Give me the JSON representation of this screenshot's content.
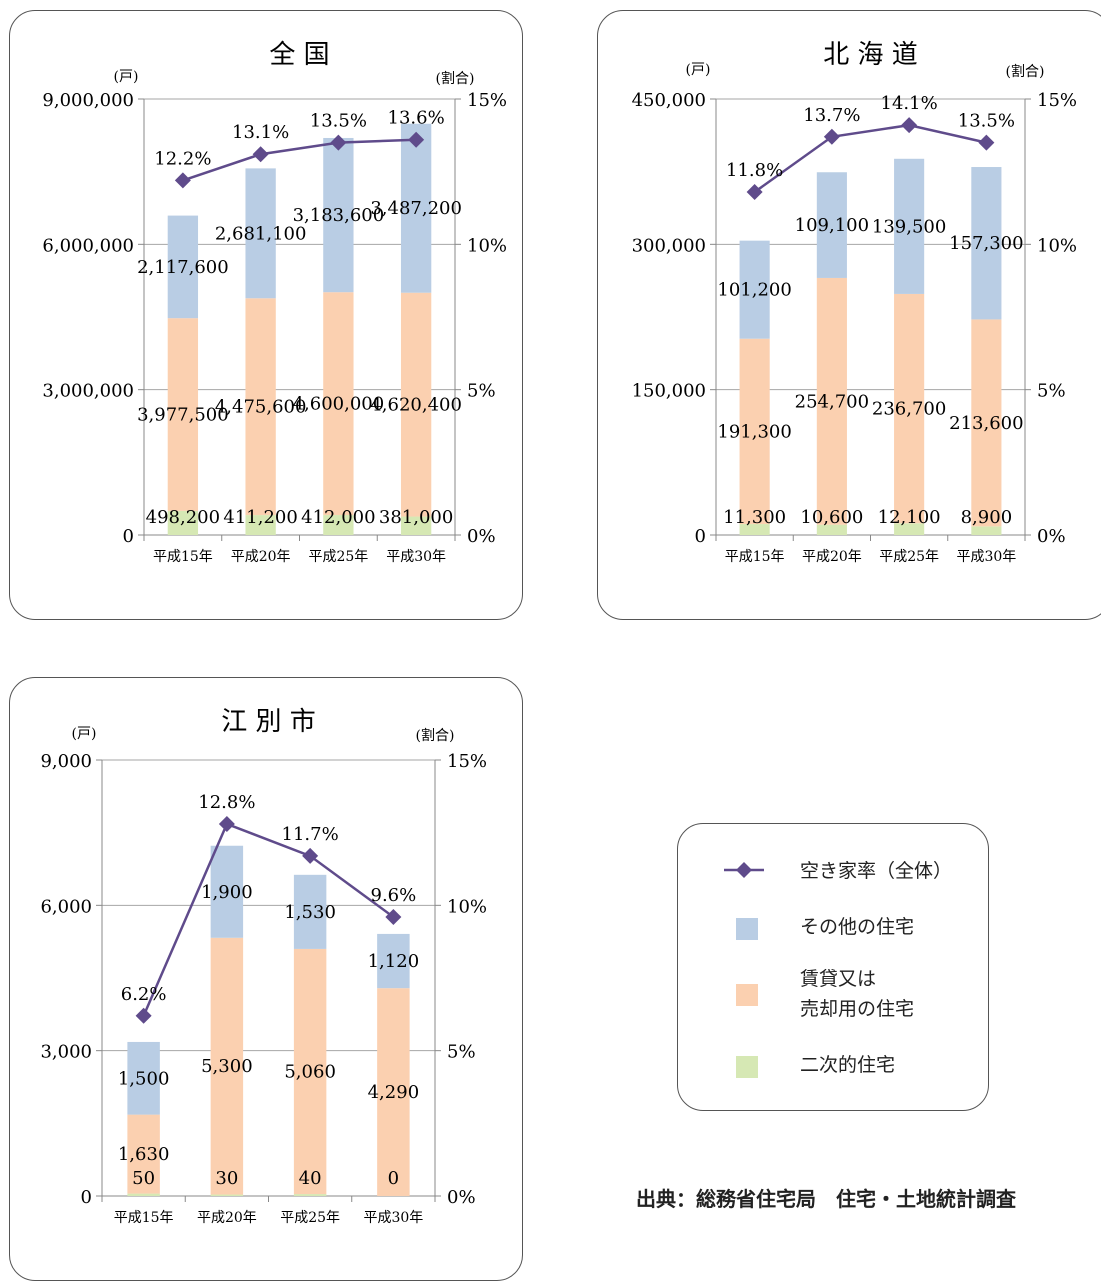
{
  "colors": {
    "other": "#b9cde4",
    "rent_sale": "#fbd0b0",
    "secondary": "#d6e8b4",
    "rate_line": "#5f4b8b",
    "grid": "#a6a6a6"
  },
  "legend": {
    "items": [
      {
        "key": "rate",
        "label": "空き家率（全体）"
      },
      {
        "key": "other",
        "label": "その他の住宅"
      },
      {
        "key": "rent_sale",
        "label": "賃貸又は\n売却用の住宅"
      },
      {
        "key": "secondary",
        "label": "二次的住宅"
      }
    ]
  },
  "source": "出典：総務省住宅局　住宅・土地統計調査",
  "chart_data": [
    {
      "type": "bar",
      "title": "全 国",
      "y_left_unit": "(戸)",
      "y_right_unit": "(割合)",
      "categories": [
        "平成15年",
        "平成20年",
        "平成25年",
        "平成30年"
      ],
      "ylim": [
        0,
        9000000
      ],
      "y_ticks": [
        "0",
        "3,000,000",
        "6,000,000",
        "9,000,000"
      ],
      "y2lim": [
        0,
        15
      ],
      "y2_ticks": [
        "0%",
        "5%",
        "10%",
        "15%"
      ],
      "series": [
        {
          "key": "secondary",
          "values": [
            498200,
            411200,
            412000,
            381000
          ],
          "labels": [
            "498,200",
            "411,200",
            "412,000",
            "381,000"
          ]
        },
        {
          "key": "rent_sale",
          "values": [
            3977500,
            4475600,
            4600000,
            4620400
          ],
          "labels": [
            "3,977,500",
            "4,475,600",
            "4,600,000",
            "4,620,400"
          ]
        },
        {
          "key": "other",
          "values": [
            2117600,
            2681100,
            3183600,
            3487200
          ],
          "labels": [
            "2,117,600",
            "2,681,100",
            "3,183,600",
            "3,487,200"
          ]
        }
      ],
      "rate": {
        "values": [
          12.2,
          13.1,
          13.5,
          13.6
        ],
        "labels": [
          "12.2%",
          "13.1%",
          "13.5%",
          "13.6%"
        ]
      }
    },
    {
      "type": "bar",
      "title": "北 海 道",
      "y_left_unit": "(戸)",
      "y_right_unit": "(割合)",
      "categories": [
        "平成15年",
        "平成20年",
        "平成25年",
        "平成30年"
      ],
      "ylim": [
        0,
        450000
      ],
      "y_ticks": [
        "0",
        "150,000",
        "300,000",
        "450,000"
      ],
      "y2lim": [
        0,
        15
      ],
      "y2_ticks": [
        "0%",
        "5%",
        "10%",
        "15%"
      ],
      "series": [
        {
          "key": "secondary",
          "values": [
            11300,
            10600,
            12100,
            8900
          ],
          "labels": [
            "11,300",
            "10,600",
            "12,100",
            "8,900"
          ]
        },
        {
          "key": "rent_sale",
          "values": [
            191300,
            254700,
            236700,
            213600
          ],
          "labels": [
            "191,300",
            "254,700",
            "236,700",
            "213,600"
          ]
        },
        {
          "key": "other",
          "values": [
            101200,
            109100,
            139500,
            157300
          ],
          "labels": [
            "101,200",
            "109,100",
            "139,500",
            "157,300"
          ]
        }
      ],
      "rate": {
        "values": [
          11.8,
          13.7,
          14.1,
          13.5
        ],
        "labels": [
          "11.8%",
          "13.7%",
          "14.1%",
          "13.5%"
        ]
      }
    },
    {
      "type": "bar",
      "title": "江 別 市",
      "y_left_unit": "(戸)",
      "y_right_unit": "(割合)",
      "categories": [
        "平成15年",
        "平成20年",
        "平成25年",
        "平成30年"
      ],
      "ylim": [
        0,
        9000
      ],
      "y_ticks": [
        "0",
        "3,000",
        "6,000",
        "9,000"
      ],
      "y2lim": [
        0,
        15
      ],
      "y2_ticks": [
        "0%",
        "5%",
        "10%",
        "15%"
      ],
      "series": [
        {
          "key": "secondary",
          "values": [
            50,
            30,
            40,
            0
          ],
          "labels": [
            "50",
            "30",
            "40",
            "0"
          ]
        },
        {
          "key": "rent_sale",
          "values": [
            1630,
            5300,
            5060,
            4290
          ],
          "labels": [
            "1,630",
            "5,300",
            "5,060",
            "4,290"
          ]
        },
        {
          "key": "other",
          "values": [
            1500,
            1900,
            1530,
            1120
          ],
          "labels": [
            "1,500",
            "1,900",
            "1,530",
            "1,120"
          ]
        }
      ],
      "rate": {
        "values": [
          6.2,
          12.8,
          11.7,
          9.6
        ],
        "labels": [
          "6.2%",
          "12.8%",
          "11.7%",
          "9.6%"
        ]
      }
    }
  ]
}
